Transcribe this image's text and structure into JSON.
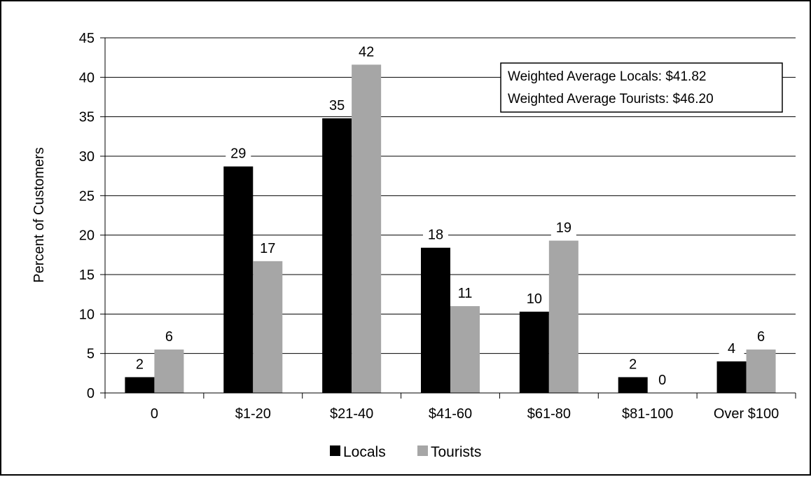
{
  "chart_data": {
    "type": "bar",
    "categories": [
      "0",
      "$1-20",
      "$21-40",
      "$41-60",
      "$61-80",
      "$81-100",
      "Over $100"
    ],
    "series": [
      {
        "name": "Locals",
        "color": "#000000",
        "values": [
          2,
          28.7,
          34.8,
          18.4,
          10.3,
          2,
          4
        ],
        "labels": [
          "2",
          "29",
          "35",
          "18",
          "10",
          "2",
          "4"
        ]
      },
      {
        "name": "Tourists",
        "color": "#a6a6a6",
        "values": [
          5.5,
          16.7,
          41.6,
          11,
          19.3,
          0,
          5.5
        ],
        "labels": [
          "6",
          "17",
          "42",
          "11",
          "19",
          "0",
          "6"
        ]
      }
    ],
    "title": "",
    "xlabel": "",
    "ylabel": "Percent of Customers",
    "ylim": [
      0,
      45
    ],
    "yticks": [
      0,
      5,
      10,
      15,
      20,
      25,
      30,
      35,
      40,
      45
    ],
    "grid": true,
    "legend_position": "bottom",
    "annotations": [
      "Weighted Average Locals: $41.82",
      "Weighted Average Tourists: $46.20"
    ]
  }
}
